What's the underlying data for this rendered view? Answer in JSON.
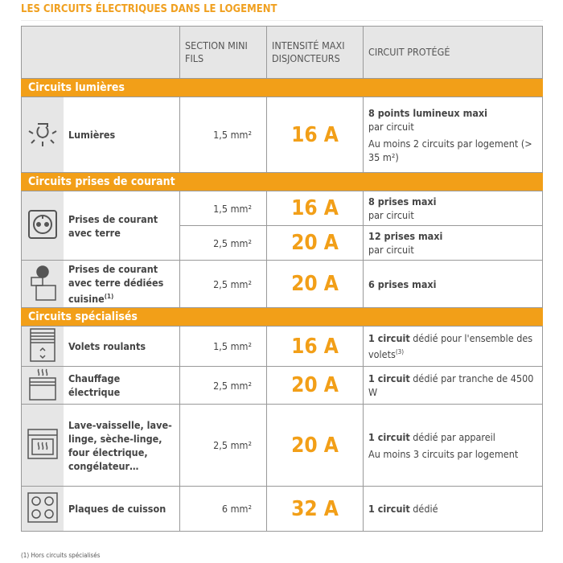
{
  "title": "LES CIRCUITS ÉLECTRIQUES DANS LE LOGEMENT",
  "headers": {
    "section": "SECTION MINI FILS",
    "intensite": "INTENSITÉ MAXI DISJONCTEURS",
    "circuit": "CIRCUIT PROTÉGÉ"
  },
  "groups": {
    "lumieres": "Circuits lumières",
    "prises": "Circuits prises de courant",
    "specialises": "Circuits spécialisés"
  },
  "rows": {
    "lumieres": {
      "label": "Lumières",
      "section": "1,5 mm²",
      "amp": "16 A",
      "p1b": "8 points lumineux maxi",
      "p1": "par circuit",
      "p2": "Au moins 2 circuits par logement (> 35 m²)"
    },
    "prises1": {
      "label": "Prises de courant avec terre",
      "section": "1,5 mm²",
      "amp": "16 A",
      "b": "8 prises maxi",
      "t": "par circuit"
    },
    "prises2": {
      "section": "2,5 mm²",
      "amp": "20 A",
      "b": "12 prises maxi",
      "t": "par circuit"
    },
    "cuisine": {
      "label": "Prises de courant avec terre dédiées cuisine",
      "sup": "(1)",
      "section": "2,5 mm²",
      "amp": "20 A",
      "b": "6 prises maxi"
    },
    "volets": {
      "label": "Volets roulants",
      "section": "1,5 mm²",
      "amp": "16 A",
      "b": "1 circuit",
      "t": " dédié pour l'ensemble des volets",
      "sup": "(3)"
    },
    "chauffage": {
      "label": "Chauffage électrique",
      "section": "2,5 mm²",
      "amp": "20 A",
      "b": "1 circuit",
      "t": " dédié par tranche de 4500 W"
    },
    "lave": {
      "label": "Lave-vaisselle, lave-linge, sèche-linge, four électrique, congélateur…",
      "section": "2,5 mm²",
      "amp": "20 A",
      "b": "1 circuit",
      "t": " dédié par appareil",
      "p2": "Au moins 3 circuits par logement"
    },
    "plaques": {
      "label": "Plaques de cuisson",
      "section": "6 mm²",
      "amp": "32 A",
      "b": "1 circuit",
      "t": " dédié"
    }
  },
  "footnote": "(1) Hors circuits spécialisés",
  "colors": {
    "accent": "#f29f18",
    "header_bg": "#e6e6e6"
  }
}
